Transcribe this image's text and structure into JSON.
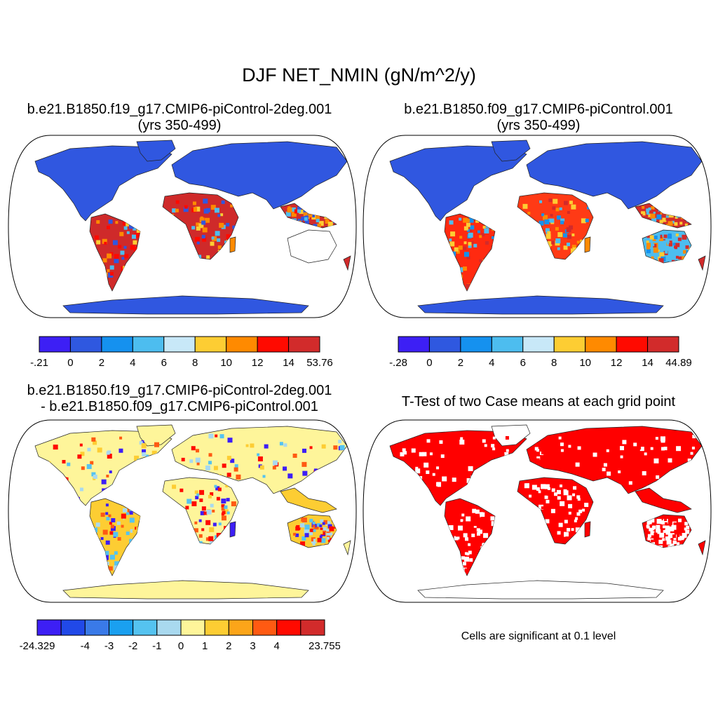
{
  "figure": {
    "title": "DJF NET_NMIN (gN/m^2/y)"
  },
  "panels": [
    {
      "title_line1": "b.e21.B1850.f19_g17.CMIP6-piControl-2deg.001",
      "title_line2": "(yrs 350-499)",
      "type": "field",
      "colorbar": {
        "labels": [
          "-.21",
          "0",
          "2",
          "4",
          "6",
          "8",
          "10",
          "12",
          "14",
          "53.76"
        ],
        "colors": [
          "#3d1ff5",
          "#2f58e0",
          "#1591ef",
          "#4dbdef",
          "#c8e8f8",
          "#fdcd33",
          "#ff8a00",
          "#ff0a00",
          "#d22b2b"
        ]
      }
    },
    {
      "title_line1": "b.e21.B1850.f09_g17.CMIP6-piControl.001",
      "title_line2": "(yrs 350-499)",
      "type": "field",
      "colorbar": {
        "labels": [
          "-.28",
          "0",
          "2",
          "4",
          "6",
          "8",
          "10",
          "12",
          "14",
          "44.89"
        ],
        "colors": [
          "#3d1ff5",
          "#2f58e0",
          "#1591ef",
          "#4dbdef",
          "#c8e8f8",
          "#fdcd33",
          "#ff8a00",
          "#ff0a00",
          "#d22b2b"
        ]
      }
    },
    {
      "title_line1": "b.e21.B1850.f19_g17.CMIP6-piControl-2deg.001",
      "title_line2": "- b.e21.B1850.f09_g17.CMIP6-piControl.001",
      "type": "difference",
      "colorbar": {
        "labels": [
          "-24.329",
          "",
          "-4",
          "-3",
          "-2",
          "-1",
          "0",
          "1",
          "2",
          "3",
          "4",
          "",
          "23.755"
        ],
        "colors": [
          "#3d1ff5",
          "#2149e8",
          "#3a7ae8",
          "#1aa0f0",
          "#55c3f0",
          "#a9d9ef",
          "#fef59a",
          "#fdcd33",
          "#fca519",
          "#ff5a12",
          "#ff0a00",
          "#d22b2b"
        ]
      }
    },
    {
      "title_line1": "T-Test of two Case means at each grid point",
      "title_line2": "",
      "type": "significance",
      "note": "Cells are significant at 0.1 level",
      "fill_color": "#ff0000"
    }
  ]
}
